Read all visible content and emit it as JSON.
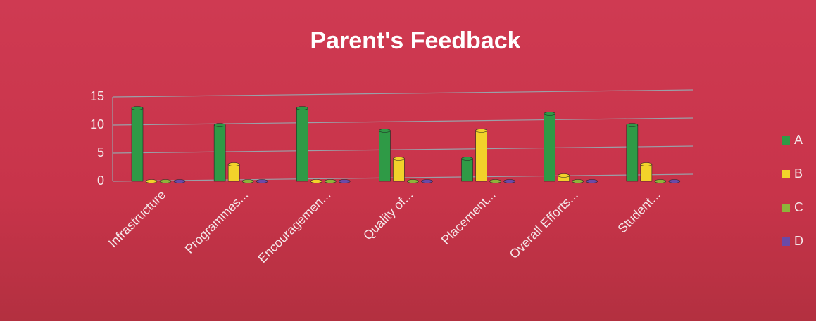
{
  "chart_data": {
    "type": "bar",
    "title": "Parent's Feedback",
    "categories": [
      "Infrastructure",
      "Programmes...",
      "Encouragemen...",
      "Quality of...",
      "Placement...",
      "Overall Efforts...",
      "Student..."
    ],
    "series": [
      {
        "name": "A",
        "color": "#2f9a46",
        "values": [
          13,
          10,
          13,
          9,
          4,
          12,
          10
        ]
      },
      {
        "name": "B",
        "color": "#f2d22a",
        "values": [
          0,
          3,
          0,
          4,
          9,
          1,
          3
        ]
      },
      {
        "name": "C",
        "color": "#8eb43a",
        "values": [
          0,
          0,
          0,
          0,
          0,
          0,
          0
        ]
      },
      {
        "name": "D",
        "color": "#6a4aa8",
        "values": [
          0,
          0,
          0,
          0,
          0,
          0,
          0
        ]
      }
    ],
    "ylim": [
      0,
      15
    ],
    "yticks": [
      0,
      5,
      10,
      15
    ],
    "grid": true,
    "legend": "right"
  }
}
